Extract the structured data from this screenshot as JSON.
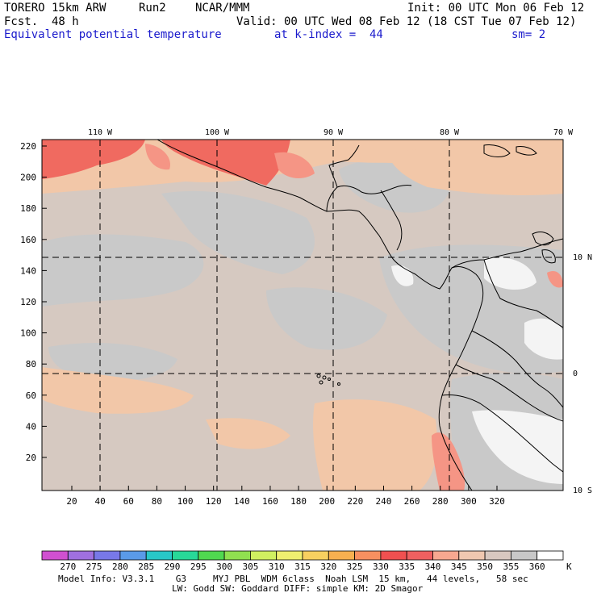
{
  "header": {
    "model": "TORERO 15km ARW",
    "run": "Run2",
    "org": "NCAR/MMM",
    "init": "Init: 00 UTC Mon 06 Feb 12",
    "fcst": "Fcst.  48 h",
    "valid": "Valid: 00 UTC Wed 08 Feb 12 (18 CST Tue 07 Feb 12)",
    "field": "Equivalent potential temperature",
    "level": "at k-index =  44",
    "smooth": "sm= 2"
  },
  "map": {
    "lon_labels": [
      "110 W",
      "100 W",
      "90 W",
      "80 W",
      "70 W"
    ],
    "lat_labels": [
      "10 N",
      "0",
      "10 S"
    ],
    "y_ticks": [
      "220",
      "200",
      "180",
      "160",
      "140",
      "120",
      "100",
      "80",
      "60",
      "40",
      "20"
    ],
    "x_ticks": [
      "20",
      "40",
      "60",
      "80",
      "100",
      "120",
      "140",
      "160",
      "180",
      "200",
      "220",
      "240",
      "260",
      "280",
      "300",
      "320"
    ]
  },
  "colorbar": {
    "labels": [
      "270",
      "275",
      "280",
      "285",
      "290",
      "295",
      "300",
      "305",
      "310",
      "315",
      "320",
      "325",
      "330",
      "335",
      "340",
      "345",
      "350",
      "355",
      "360"
    ],
    "unit": "K",
    "colors": [
      "#d050d0",
      "#a070e0",
      "#7878e8",
      "#5a9ae8",
      "#28c8c8",
      "#28d898",
      "#50d850",
      "#90e050",
      "#d0f060",
      "#f0f070",
      "#f8d060",
      "#f8b050",
      "#f89060",
      "#f05050",
      "#f06060",
      "#f8a890",
      "#f0c8b0",
      "#d8c8c0",
      "#c8c8c8",
      "#ffffff"
    ]
  },
  "footer": {
    "line1": "Model Info: V3.3.1    G3     MYJ PBL  WDM 6class  Noah LSM  15 km,   44 levels,   58 sec",
    "line2": "LW: Godd SW: Goddard DIFF: simple KM: 2D Smagor"
  }
}
